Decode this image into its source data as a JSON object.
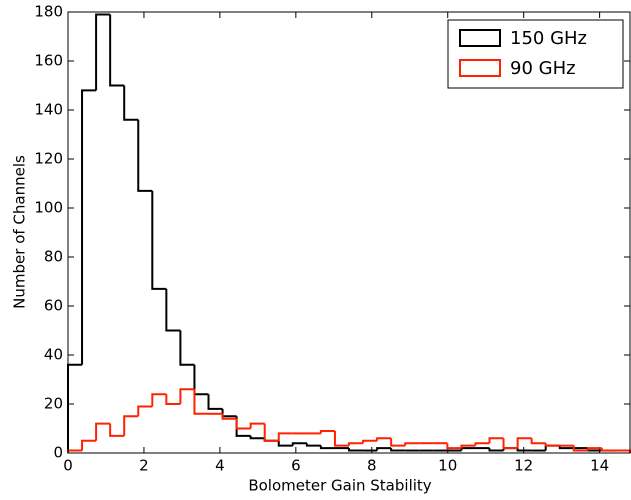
{
  "chart_data": {
    "type": "histogram",
    "x_label": "Bolometer Gain Stability",
    "y_label": "Number of Channels",
    "bins": [
      0,
      0.37,
      0.74,
      1.11,
      1.48,
      1.85,
      2.22,
      2.59,
      2.96,
      3.33,
      3.7,
      4.07,
      4.44,
      4.81,
      5.18,
      5.55,
      5.92,
      6.29,
      6.66,
      7.03,
      7.4,
      7.77,
      8.14,
      8.51,
      8.88,
      9.25,
      9.62,
      9.99,
      10.36,
      10.73,
      11.1,
      11.47,
      11.84,
      12.21,
      12.58,
      12.95,
      13.32,
      13.69,
      14.06,
      14.43,
      14.8
    ],
    "series": [
      {
        "name": "150 GHz",
        "color": "#000000",
        "values": [
          36,
          148,
          179,
          150,
          136,
          107,
          67,
          50,
          36,
          24,
          18,
          15,
          7,
          6,
          5,
          3,
          4,
          3,
          2,
          2,
          1,
          1,
          2,
          1,
          1,
          1,
          1,
          1,
          2,
          2,
          1,
          2,
          1,
          1,
          3,
          2,
          2,
          1,
          1,
          1
        ]
      },
      {
        "name": "90 GHz",
        "color": "#ff2200",
        "values": [
          1,
          5,
          12,
          7,
          15,
          19,
          24,
          20,
          26,
          16,
          16,
          14,
          10,
          12,
          5,
          8,
          8,
          8,
          9,
          3,
          4,
          5,
          6,
          3,
          4,
          4,
          4,
          2,
          3,
          4,
          6,
          2,
          6,
          4,
          3,
          3,
          1,
          2,
          1,
          1
        ]
      }
    ],
    "xlim": [
      0,
      14.8
    ],
    "ylim": [
      0,
      180
    ],
    "xticks": [
      0,
      2,
      4,
      6,
      8,
      10,
      12,
      14
    ],
    "yticks": [
      0,
      20,
      40,
      60,
      80,
      100,
      120,
      140,
      160,
      180
    ],
    "legend": "upper right"
  }
}
